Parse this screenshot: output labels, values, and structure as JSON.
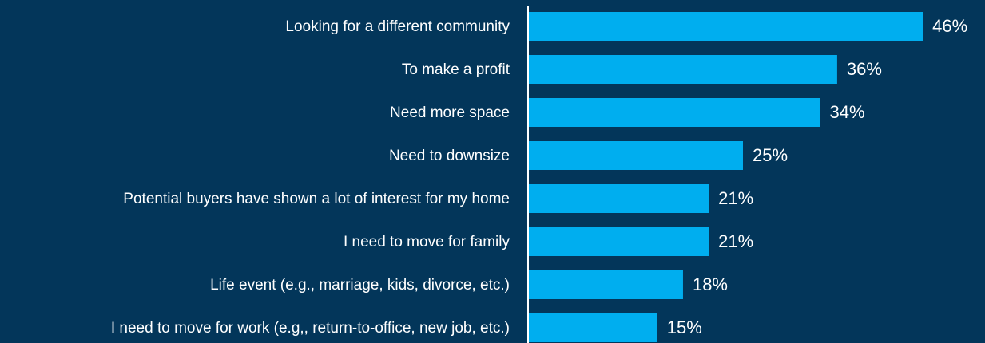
{
  "chart_data": {
    "type": "bar",
    "orientation": "horizontal",
    "categories": [
      "Looking for a different community",
      "To make a profit",
      "Need more space",
      "Need to downsize",
      "Potential buyers have shown a lot of interest for my home",
      "I need to move for family",
      "Life event (e.g., marriage, kids, divorce, etc.)",
      "I need to move for work (e.g,, return-to-office, new job, etc.)"
    ],
    "values": [
      46,
      36,
      34,
      25,
      21,
      21,
      18,
      15
    ],
    "value_labels": [
      "46%",
      "36%",
      "34%",
      "25%",
      "21%",
      "21%",
      "18%",
      "15%"
    ],
    "color": "#00aeef"
  }
}
